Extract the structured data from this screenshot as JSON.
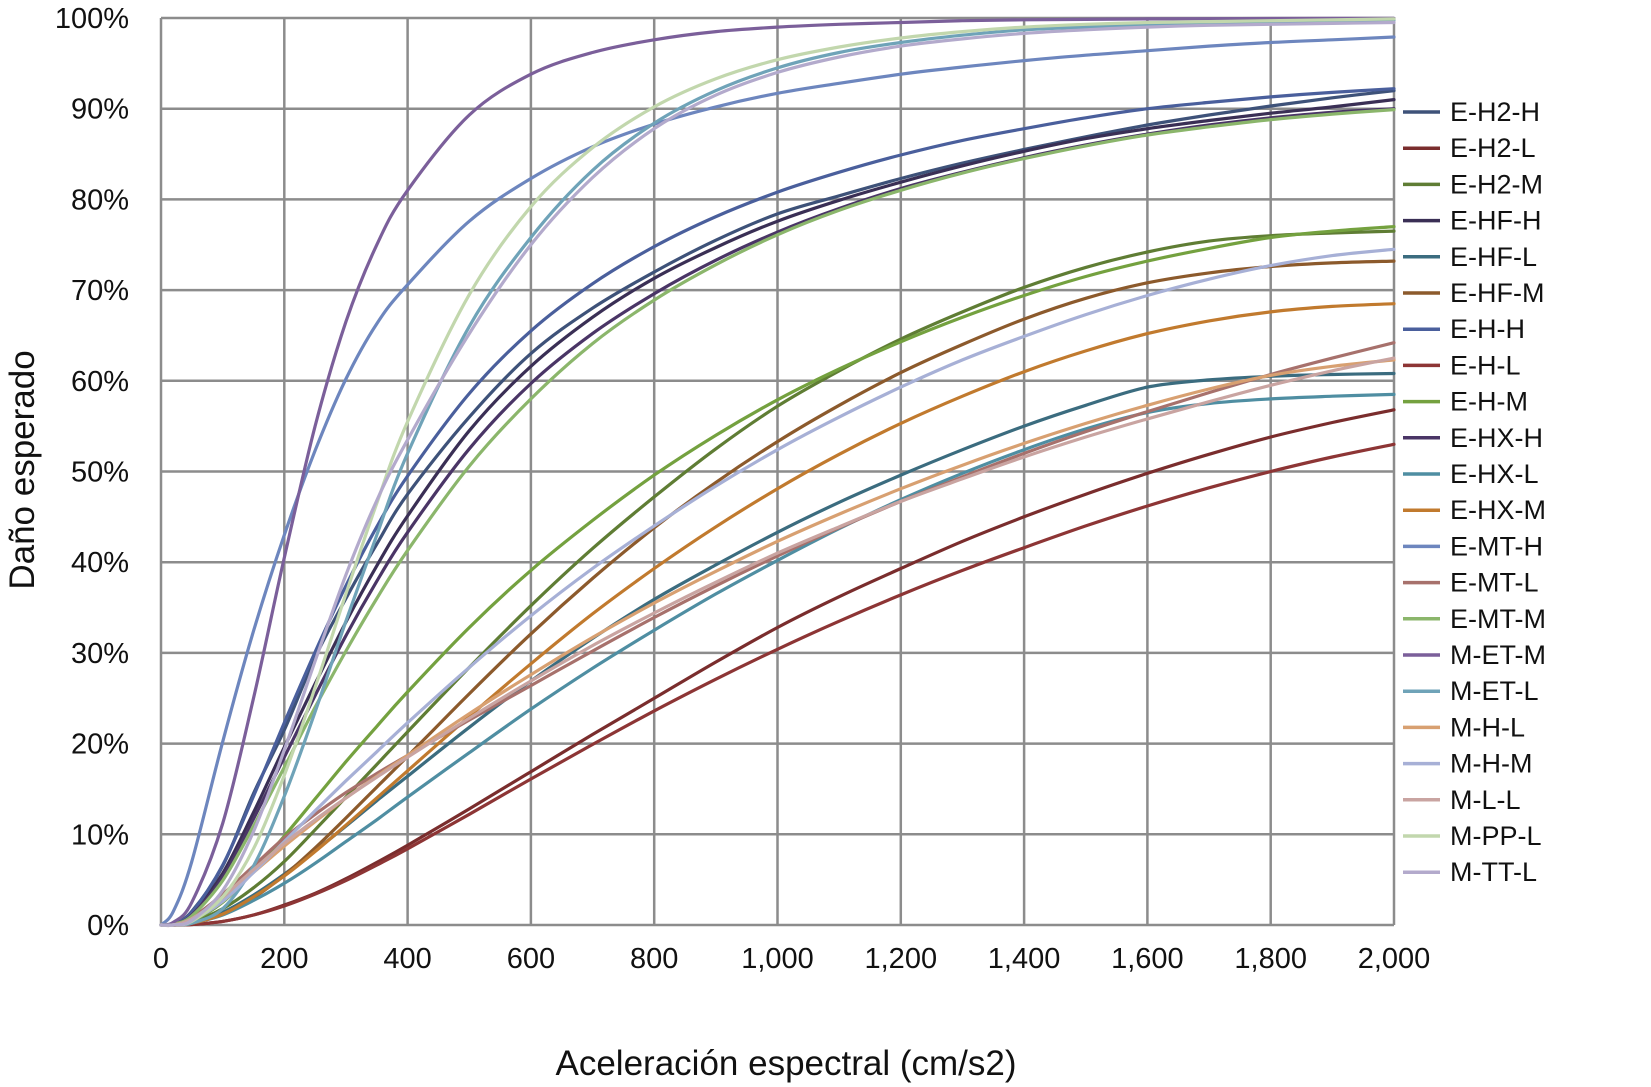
{
  "chart_data": {
    "type": "line",
    "xlabel": "Aceleración espectral (cm/s2)",
    "ylabel": "Daño esperado",
    "xlim": [
      0,
      2000
    ],
    "ylim": [
      0,
      100
    ],
    "x_ticks": [
      "0",
      "200",
      "400",
      "600",
      "800",
      "1,000",
      "1,200",
      "1,400",
      "1,600",
      "1,800",
      "2,000"
    ],
    "y_ticks": [
      "0%",
      "10%",
      "20%",
      "30%",
      "40%",
      "50%",
      "60%",
      "70%",
      "80%",
      "90%",
      "100%"
    ],
    "grid": true,
    "legend_position": "right",
    "x": [
      0,
      20,
      50,
      100,
      150,
      200,
      250,
      300,
      350,
      400,
      500,
      600,
      700,
      800,
      900,
      1000,
      1100,
      1200,
      1300,
      1400,
      1500,
      1600,
      1700,
      1800,
      1900,
      2000
    ],
    "series": [
      {
        "name": "E-H2-H",
        "color": "#3e5279",
        "values": [
          0,
          0.1,
          1.5,
          6.5,
          14.5,
          21.5,
          29.5,
          36,
          42,
          47.5,
          56,
          63,
          68,
          72,
          75.5,
          78.4,
          80.4,
          82.3,
          84,
          85.5,
          86.9,
          88.2,
          89.3,
          90.3,
          91.2,
          92
        ]
      },
      {
        "name": "E-H2-L",
        "color": "#7a2d2d",
        "values": [
          0,
          0,
          0.05,
          0.4,
          1.1,
          2.2,
          3.5,
          5.1,
          6.9,
          8.8,
          12.8,
          16.9,
          21,
          25,
          29,
          32.8,
          36.2,
          39.3,
          42.3,
          45,
          47.5,
          49.8,
          51.9,
          53.8,
          55.4,
          56.8
        ]
      },
      {
        "name": "E-H2-M",
        "color": "#5f7d34",
        "values": [
          0,
          0,
          0.3,
          1.8,
          4.1,
          7,
          10.5,
          14.1,
          17.7,
          21.3,
          28.4,
          35.2,
          41.5,
          47.2,
          52.5,
          57.2,
          61.1,
          64.6,
          67.6,
          70.3,
          72.5,
          74.2,
          75.4,
          76,
          76.3,
          76.5
        ]
      },
      {
        "name": "E-HF-H",
        "color": "#3a2f55",
        "values": [
          0,
          0.1,
          1.2,
          5.7,
          12.4,
          19.6,
          26.6,
          33.4,
          39.6,
          45.1,
          54.5,
          61.6,
          67,
          71.3,
          74.7,
          77.6,
          79.9,
          81.9,
          83.7,
          85.3,
          86.7,
          87.8,
          88.7,
          89.5,
          90.2,
          91
        ]
      },
      {
        "name": "E-HF-L",
        "color": "#3b6c7f",
        "values": [
          0,
          0,
          0.25,
          1.4,
          3.3,
          5.6,
          8.2,
          10.9,
          13.7,
          16.4,
          21.8,
          26.9,
          31.6,
          35.9,
          39.7,
          43.3,
          46.6,
          49.6,
          52.4,
          55,
          57.3,
          59.3,
          60.1,
          60.5,
          60.7,
          60.8
        ]
      },
      {
        "name": "E-HF-M",
        "color": "#8c5a2c",
        "values": [
          0,
          0,
          0.2,
          1.2,
          3,
          5.5,
          8.5,
          11.8,
          15.2,
          18.6,
          25.5,
          32.1,
          38.2,
          43.8,
          48.8,
          53.3,
          57.3,
          60.9,
          64,
          66.8,
          69.1,
          70.8,
          71.9,
          72.6,
          73,
          73.2
        ]
      },
      {
        "name": "E-H-H",
        "color": "#4a5f9c",
        "values": [
          0,
          0.1,
          1.4,
          6.6,
          14.2,
          22.3,
          30.1,
          37.4,
          43.9,
          49.5,
          58.6,
          65.5,
          70.7,
          74.8,
          78.1,
          80.8,
          83,
          84.9,
          86.5,
          87.8,
          89,
          90,
          90.7,
          91.3,
          91.8,
          92.2
        ]
      },
      {
        "name": "E-H-L",
        "color": "#8d3535",
        "values": [
          0,
          0,
          0.05,
          0.4,
          1.1,
          2.1,
          3.4,
          4.9,
          6.6,
          8.4,
          12.2,
          16.1,
          19.9,
          23.6,
          27.1,
          30.4,
          33.5,
          36.4,
          39.1,
          41.6,
          44,
          46.2,
          48.2,
          50,
          51.6,
          53
        ]
      },
      {
        "name": "E-H-M",
        "color": "#74a13f",
        "values": [
          0,
          0,
          0.4,
          2.5,
          5.9,
          9.8,
          13.9,
          18,
          21.9,
          25.7,
          32.8,
          39.1,
          44.6,
          49.6,
          54,
          57.9,
          61.3,
          64.3,
          67,
          69.4,
          71.5,
          73.2,
          74.6,
          75.8,
          76.5,
          77
        ]
      },
      {
        "name": "E-HX-H",
        "color": "#4a3566",
        "values": [
          0,
          0.1,
          1.1,
          5.3,
          11.7,
          18.5,
          25.3,
          31.9,
          37.9,
          43.3,
          52.5,
          59.7,
          65.2,
          69.6,
          73.3,
          76.4,
          79,
          81.2,
          83,
          84.6,
          86,
          87.2,
          88.2,
          89,
          89.6,
          90
        ]
      },
      {
        "name": "E-HX-L",
        "color": "#4f8ea2",
        "values": [
          0,
          0,
          0.2,
          1.1,
          2.7,
          4.6,
          6.8,
          9.2,
          11.6,
          14.1,
          19,
          23.8,
          28.3,
          32.5,
          36.5,
          40.2,
          43.7,
          46.9,
          49.8,
          52.4,
          54.7,
          56.5,
          57.5,
          58,
          58.3,
          58.5
        ]
      },
      {
        "name": "E-HX-M",
        "color": "#c17a2e",
        "values": [
          0,
          0,
          0.2,
          1.2,
          3.1,
          5.4,
          8.1,
          11,
          14,
          17,
          23,
          28.8,
          34.3,
          39.3,
          43.9,
          48.1,
          51.9,
          55.3,
          58.3,
          61,
          63.3,
          65.2,
          66.6,
          67.6,
          68.2,
          68.5
        ]
      },
      {
        "name": "E-MT-H",
        "color": "#6d86be",
        "values": [
          0,
          1.5,
          7,
          20.2,
          32.4,
          43,
          52.3,
          60.2,
          66.3,
          70.6,
          77.6,
          82.3,
          85.8,
          88.3,
          90.2,
          91.7,
          92.8,
          93.8,
          94.6,
          95.3,
          95.9,
          96.4,
          96.9,
          97.3,
          97.6,
          97.9
        ]
      },
      {
        "name": "E-MT-L",
        "color": "#a7716c",
        "values": [
          0,
          0,
          0.8,
          3.4,
          6.5,
          9.6,
          12.2,
          14.6,
          16.7,
          18.7,
          22.6,
          26.4,
          30.2,
          33.9,
          37.4,
          40.7,
          43.8,
          46.7,
          49.4,
          52,
          54.4,
          56.6,
          58.7,
          60.7,
          62.5,
          64.2
        ]
      },
      {
        "name": "E-MT-M",
        "color": "#8bb66b",
        "values": [
          0,
          0.1,
          1,
          4.9,
          10.9,
          17.4,
          24,
          30.2,
          36,
          41.3,
          50.6,
          58,
          64.1,
          68.9,
          72.8,
          76.1,
          78.8,
          81,
          82.9,
          84.5,
          85.9,
          87.1,
          88,
          88.8,
          89.4,
          89.9
        ]
      },
      {
        "name": "M-ET-M",
        "color": "#7b5f9a",
        "values": [
          0,
          0.3,
          2.5,
          11.2,
          25,
          40.5,
          55,
          66.5,
          75,
          81,
          89.3,
          93.8,
          96.2,
          97.6,
          98.5,
          99,
          99.3,
          99.5,
          99.7,
          99.8,
          99.85,
          99.9,
          99.92,
          99.94,
          99.96,
          99.97
        ]
      },
      {
        "name": "M-ET-L",
        "color": "#6fa3b8",
        "values": [
          0,
          0,
          0.2,
          1.8,
          6.5,
          14.2,
          23.5,
          33.5,
          43,
          52,
          66,
          75.8,
          83.2,
          88.4,
          92,
          94.5,
          96.2,
          97.3,
          98.1,
          98.7,
          99,
          99.3,
          99.5,
          99.6,
          99.7,
          99.8
        ]
      },
      {
        "name": "M-H-L",
        "color": "#d8a071",
        "values": [
          0,
          0,
          0.6,
          2.9,
          5.8,
          8.7,
          11.4,
          14,
          16.4,
          18.7,
          23.3,
          27.6,
          31.7,
          35.5,
          39,
          42.3,
          45.3,
          48.1,
          50.7,
          53.1,
          55.3,
          57.3,
          59.1,
          60.6,
          61.6,
          62.3
        ]
      },
      {
        "name": "M-H-M",
        "color": "#a7b0d6",
        "values": [
          0,
          0,
          0.5,
          2.6,
          5.8,
          9.2,
          12.6,
          15.9,
          19.1,
          22.3,
          28.4,
          34.1,
          39.3,
          44,
          48.4,
          52.4,
          56,
          59.3,
          62.3,
          64.9,
          67.3,
          69.4,
          71.2,
          72.7,
          73.8,
          74.5
        ]
      },
      {
        "name": "M-L-L",
        "color": "#c9a4a1",
        "values": [
          0,
          0,
          0.7,
          3.1,
          6.1,
          9,
          11.6,
          14,
          16.3,
          18.5,
          22.8,
          26.9,
          30.8,
          34.4,
          37.8,
          41,
          43.9,
          46.7,
          49.2,
          51.6,
          53.8,
          55.8,
          57.7,
          59.5,
          61.1,
          62.5
        ]
      },
      {
        "name": "M-PP-L",
        "color": "#c2d7ad",
        "values": [
          0,
          0,
          0.4,
          3.1,
          8.4,
          16.5,
          26.2,
          36.5,
          46.5,
          55.5,
          69.5,
          79.2,
          85.7,
          90.2,
          93.3,
          95.4,
          96.8,
          97.8,
          98.5,
          99,
          99.3,
          99.5,
          99.6,
          99.7,
          99.8,
          99.9
        ]
      },
      {
        "name": "M-TT-L",
        "color": "#b3aacc",
        "values": [
          0,
          0,
          0.5,
          3.8,
          10.3,
          19.3,
          29.1,
          38.6,
          46.8,
          53.5,
          65.2,
          75,
          82.4,
          87.8,
          91.5,
          94,
          95.7,
          96.9,
          97.7,
          98.3,
          98.7,
          99,
          99.2,
          99.3,
          99.4,
          99.5
        ]
      }
    ]
  }
}
